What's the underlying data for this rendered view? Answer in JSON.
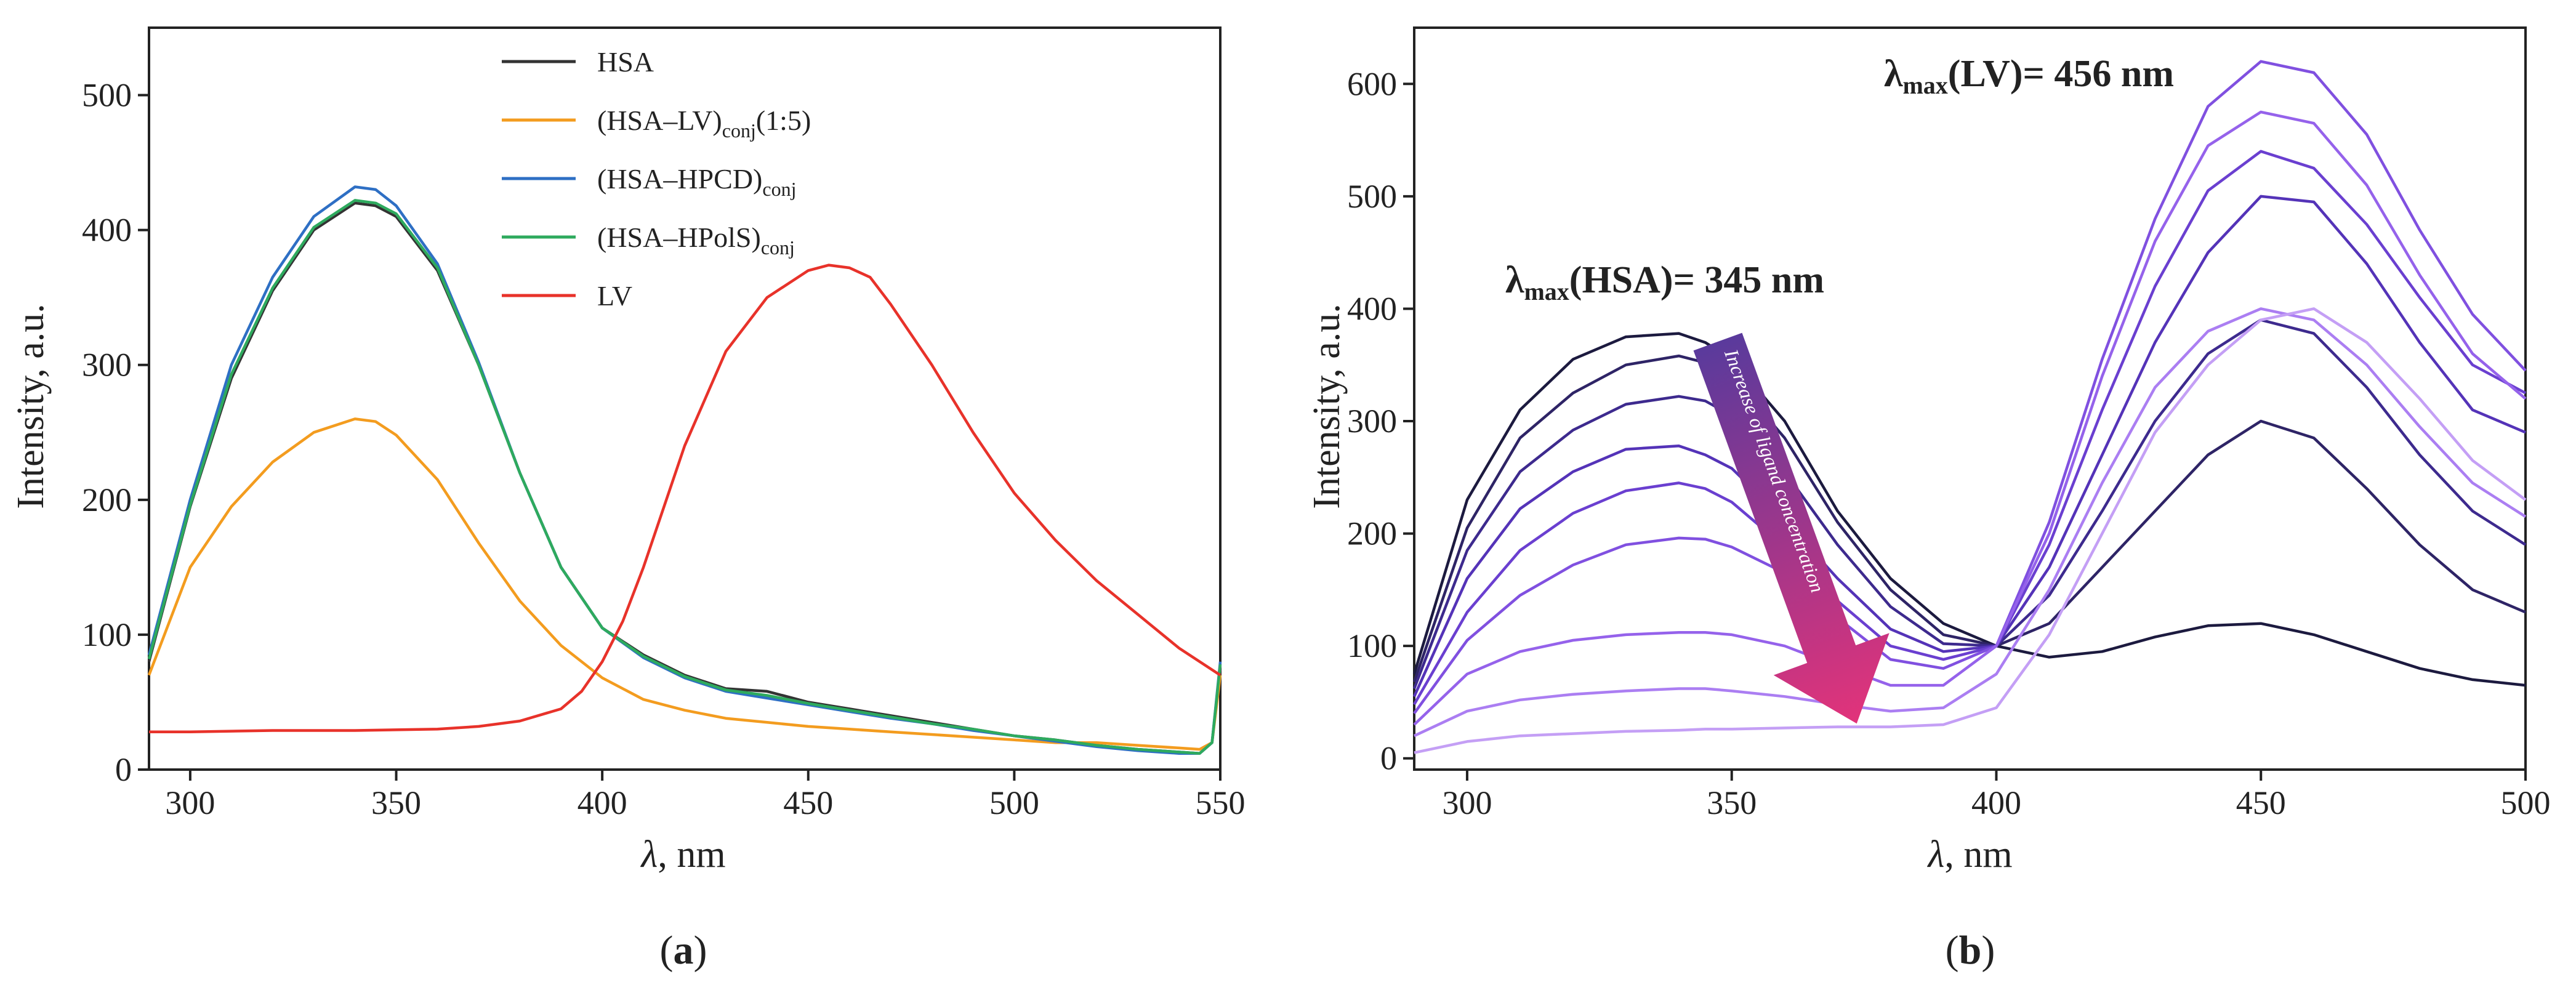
{
  "chart_data": [
    {
      "type": "line",
      "panel": "a",
      "panel_label": "a",
      "xlabel_symbol": "λ",
      "xlabel_unit": ", nm",
      "ylabel": "Intensity, a.u.",
      "xlim": [
        290,
        550
      ],
      "ylim": [
        0,
        550
      ],
      "xticks": [
        300,
        350,
        400,
        450,
        500,
        550
      ],
      "yticks": [
        0,
        100,
        200,
        300,
        400,
        500
      ],
      "legend_position": "top-center",
      "series": [
        {
          "name": "HSA",
          "legend": {
            "main": "HSA"
          },
          "color": "#333333",
          "x": [
            290,
            300,
            310,
            320,
            330,
            340,
            345,
            350,
            360,
            370,
            380,
            390,
            400,
            410,
            420,
            430,
            440,
            450,
            460,
            470,
            480,
            490,
            500,
            510,
            520,
            530,
            540,
            545,
            548,
            550
          ],
          "y": [
            80,
            195,
            290,
            355,
            400,
            420,
            418,
            410,
            370,
            300,
            220,
            150,
            105,
            85,
            70,
            60,
            58,
            50,
            45,
            40,
            35,
            30,
            25,
            22,
            18,
            15,
            13,
            12,
            20,
            75
          ]
        },
        {
          "name": "(HSA–LV)conj(1:5)",
          "legend": {
            "main": "(HSA–LV)",
            "sub": "conj",
            "suffix": "(1:5)"
          },
          "color": "#f39c1f",
          "x": [
            290,
            300,
            310,
            320,
            330,
            340,
            345,
            350,
            360,
            370,
            380,
            390,
            400,
            410,
            420,
            430,
            440,
            450,
            460,
            470,
            480,
            490,
            500,
            510,
            520,
            530,
            540,
            545,
            548,
            550
          ],
          "y": [
            70,
            150,
            195,
            228,
            250,
            260,
            258,
            248,
            215,
            168,
            125,
            92,
            68,
            52,
            44,
            38,
            35,
            32,
            30,
            28,
            26,
            24,
            22,
            20,
            20,
            18,
            16,
            15,
            20,
            70
          ]
        },
        {
          "name": "(HSA–HPCD)conj",
          "legend": {
            "main": "(HSA–HPCD)",
            "sub": "conj",
            "suffix": ""
          },
          "color": "#2e6fc4",
          "x": [
            290,
            300,
            310,
            320,
            330,
            340,
            345,
            350,
            360,
            370,
            380,
            390,
            400,
            410,
            420,
            430,
            440,
            450,
            460,
            470,
            480,
            490,
            500,
            510,
            520,
            530,
            540,
            545,
            548,
            550
          ],
          "y": [
            85,
            200,
            300,
            365,
            410,
            432,
            430,
            418,
            375,
            302,
            220,
            150,
            105,
            83,
            68,
            58,
            53,
            48,
            43,
            38,
            34,
            29,
            25,
            21,
            17,
            14,
            12,
            12,
            20,
            80
          ]
        },
        {
          "name": "(HSA–HPolS)conj",
          "legend": {
            "main": "(HSA–HPolS)",
            "sub": "conj",
            "suffix": ""
          },
          "color": "#2eaa5e",
          "x": [
            290,
            300,
            310,
            320,
            330,
            340,
            345,
            350,
            360,
            370,
            380,
            390,
            400,
            410,
            420,
            430,
            440,
            450,
            460,
            470,
            480,
            490,
            500,
            510,
            520,
            530,
            540,
            545,
            548,
            550
          ],
          "y": [
            82,
            196,
            293,
            357,
            402,
            422,
            420,
            412,
            372,
            300,
            220,
            150,
            105,
            84,
            69,
            59,
            55,
            49,
            44,
            39,
            34,
            30,
            25,
            22,
            18,
            15,
            13,
            12,
            20,
            78
          ]
        },
        {
          "name": "LV",
          "legend": {
            "main": "LV"
          },
          "color": "#e8322a",
          "x": [
            290,
            300,
            320,
            340,
            360,
            370,
            380,
            390,
            395,
            400,
            405,
            410,
            420,
            430,
            440,
            450,
            455,
            460,
            465,
            470,
            480,
            490,
            500,
            510,
            520,
            530,
            540,
            550
          ],
          "y": [
            28,
            28,
            29,
            29,
            30,
            32,
            36,
            45,
            58,
            80,
            110,
            150,
            240,
            310,
            350,
            370,
            374,
            372,
            365,
            345,
            300,
            250,
            205,
            170,
            140,
            115,
            90,
            70
          ]
        }
      ]
    },
    {
      "type": "line",
      "panel": "b",
      "panel_label": "b",
      "xlabel_symbol": "λ",
      "xlabel_unit": ", nm",
      "ylabel": "Intensity, a.u.",
      "xlim": [
        290,
        500
      ],
      "ylim": [
        -10,
        650
      ],
      "xticks": [
        300,
        350,
        400,
        450,
        500
      ],
      "yticks": [
        0,
        100,
        200,
        300,
        400,
        500,
        600
      ],
      "annotations": {
        "lambda_hsa": {
          "symbol": "λ",
          "sub": "max",
          "text": "(HSA)= 345 nm",
          "color": "#6a4aa8"
        },
        "lambda_lv": {
          "symbol": "λ",
          "sub": "max",
          "text": "(LV)= 456 nm",
          "color": "#d63878"
        },
        "arrow_label": "Increase of ligand concentration"
      },
      "series": [
        {
          "name": "0",
          "color": "#1c1a3f",
          "x": [
            290,
            300,
            310,
            320,
            330,
            340,
            345,
            350,
            360,
            370,
            380,
            390,
            400,
            410,
            420,
            430,
            440,
            450,
            460,
            470,
            480,
            490,
            500
          ],
          "y": [
            75,
            230,
            310,
            355,
            375,
            378,
            370,
            355,
            300,
            220,
            160,
            120,
            100,
            90,
            95,
            108,
            118,
            120,
            110,
            95,
            80,
            70,
            65
          ]
        },
        {
          "name": "1",
          "color": "#2e2466",
          "x": [
            290,
            300,
            310,
            320,
            330,
            340,
            345,
            350,
            360,
            370,
            380,
            390,
            400,
            410,
            420,
            430,
            440,
            450,
            460,
            470,
            480,
            490,
            500
          ],
          "y": [
            68,
            205,
            285,
            325,
            350,
            358,
            352,
            340,
            285,
            210,
            150,
            110,
            100,
            120,
            170,
            220,
            270,
            300,
            285,
            240,
            190,
            150,
            130
          ]
        },
        {
          "name": "2",
          "color": "#3d2a8e",
          "x": [
            290,
            300,
            310,
            320,
            330,
            340,
            345,
            350,
            360,
            370,
            380,
            390,
            400,
            410,
            420,
            430,
            440,
            450,
            460,
            470,
            480,
            490,
            500
          ],
          "y": [
            62,
            185,
            255,
            292,
            315,
            322,
            318,
            305,
            255,
            190,
            135,
            102,
            100,
            145,
            220,
            300,
            360,
            390,
            378,
            330,
            270,
            220,
            190
          ]
        },
        {
          "name": "3",
          "color": "#5433b8",
          "x": [
            290,
            300,
            310,
            320,
            330,
            340,
            345,
            350,
            360,
            370,
            380,
            390,
            400,
            410,
            420,
            430,
            440,
            450,
            460,
            470,
            480,
            490,
            500
          ],
          "y": [
            55,
            160,
            222,
            255,
            275,
            278,
            270,
            258,
            212,
            160,
            115,
            95,
            100,
            170,
            270,
            370,
            450,
            500,
            495,
            440,
            370,
            310,
            290
          ]
        },
        {
          "name": "4",
          "color": "#6a3fd0",
          "x": [
            290,
            300,
            310,
            320,
            330,
            340,
            345,
            350,
            360,
            370,
            380,
            390,
            400,
            410,
            420,
            430,
            440,
            450,
            460,
            470,
            480,
            490,
            500
          ],
          "y": [
            48,
            130,
            185,
            218,
            238,
            245,
            240,
            228,
            188,
            140,
            100,
            88,
            100,
            190,
            310,
            420,
            505,
            540,
            525,
            475,
            410,
            350,
            325
          ]
        },
        {
          "name": "5",
          "color": "#8050e0",
          "x": [
            290,
            300,
            310,
            320,
            330,
            340,
            345,
            350,
            360,
            370,
            380,
            390,
            400,
            410,
            420,
            430,
            440,
            450,
            460,
            470,
            480,
            490,
            500
          ],
          "y": [
            40,
            105,
            145,
            172,
            190,
            196,
            195,
            188,
            165,
            125,
            88,
            80,
            100,
            210,
            355,
            480,
            580,
            620,
            610,
            555,
            470,
            395,
            345
          ]
        },
        {
          "name": "6",
          "color": "#9562eb",
          "x": [
            290,
            300,
            310,
            320,
            330,
            340,
            345,
            350,
            360,
            370,
            380,
            390,
            400,
            410,
            420,
            430,
            440,
            450,
            460,
            470,
            480,
            490,
            500
          ],
          "y": [
            30,
            75,
            95,
            105,
            110,
            112,
            112,
            110,
            100,
            82,
            65,
            65,
            100,
            200,
            340,
            460,
            545,
            575,
            565,
            510,
            430,
            360,
            320
          ]
        },
        {
          "name": "7",
          "color": "#ab7ef2",
          "x": [
            290,
            300,
            310,
            320,
            330,
            340,
            345,
            350,
            360,
            370,
            380,
            390,
            400,
            410,
            420,
            430,
            440,
            450,
            460,
            470,
            480,
            490,
            500
          ],
          "y": [
            20,
            42,
            52,
            57,
            60,
            62,
            62,
            60,
            55,
            48,
            42,
            45,
            75,
            150,
            245,
            330,
            380,
            400,
            390,
            350,
            295,
            245,
            215
          ]
        },
        {
          "name": "8",
          "color": "#c49ff5",
          "x": [
            290,
            300,
            310,
            320,
            330,
            340,
            345,
            350,
            360,
            370,
            380,
            390,
            400,
            410,
            420,
            430,
            440,
            450,
            460,
            470,
            480,
            490,
            500
          ],
          "y": [
            5,
            15,
            20,
            22,
            24,
            25,
            26,
            26,
            27,
            28,
            28,
            30,
            45,
            110,
            200,
            290,
            350,
            390,
            400,
            370,
            320,
            265,
            230
          ]
        }
      ]
    }
  ]
}
